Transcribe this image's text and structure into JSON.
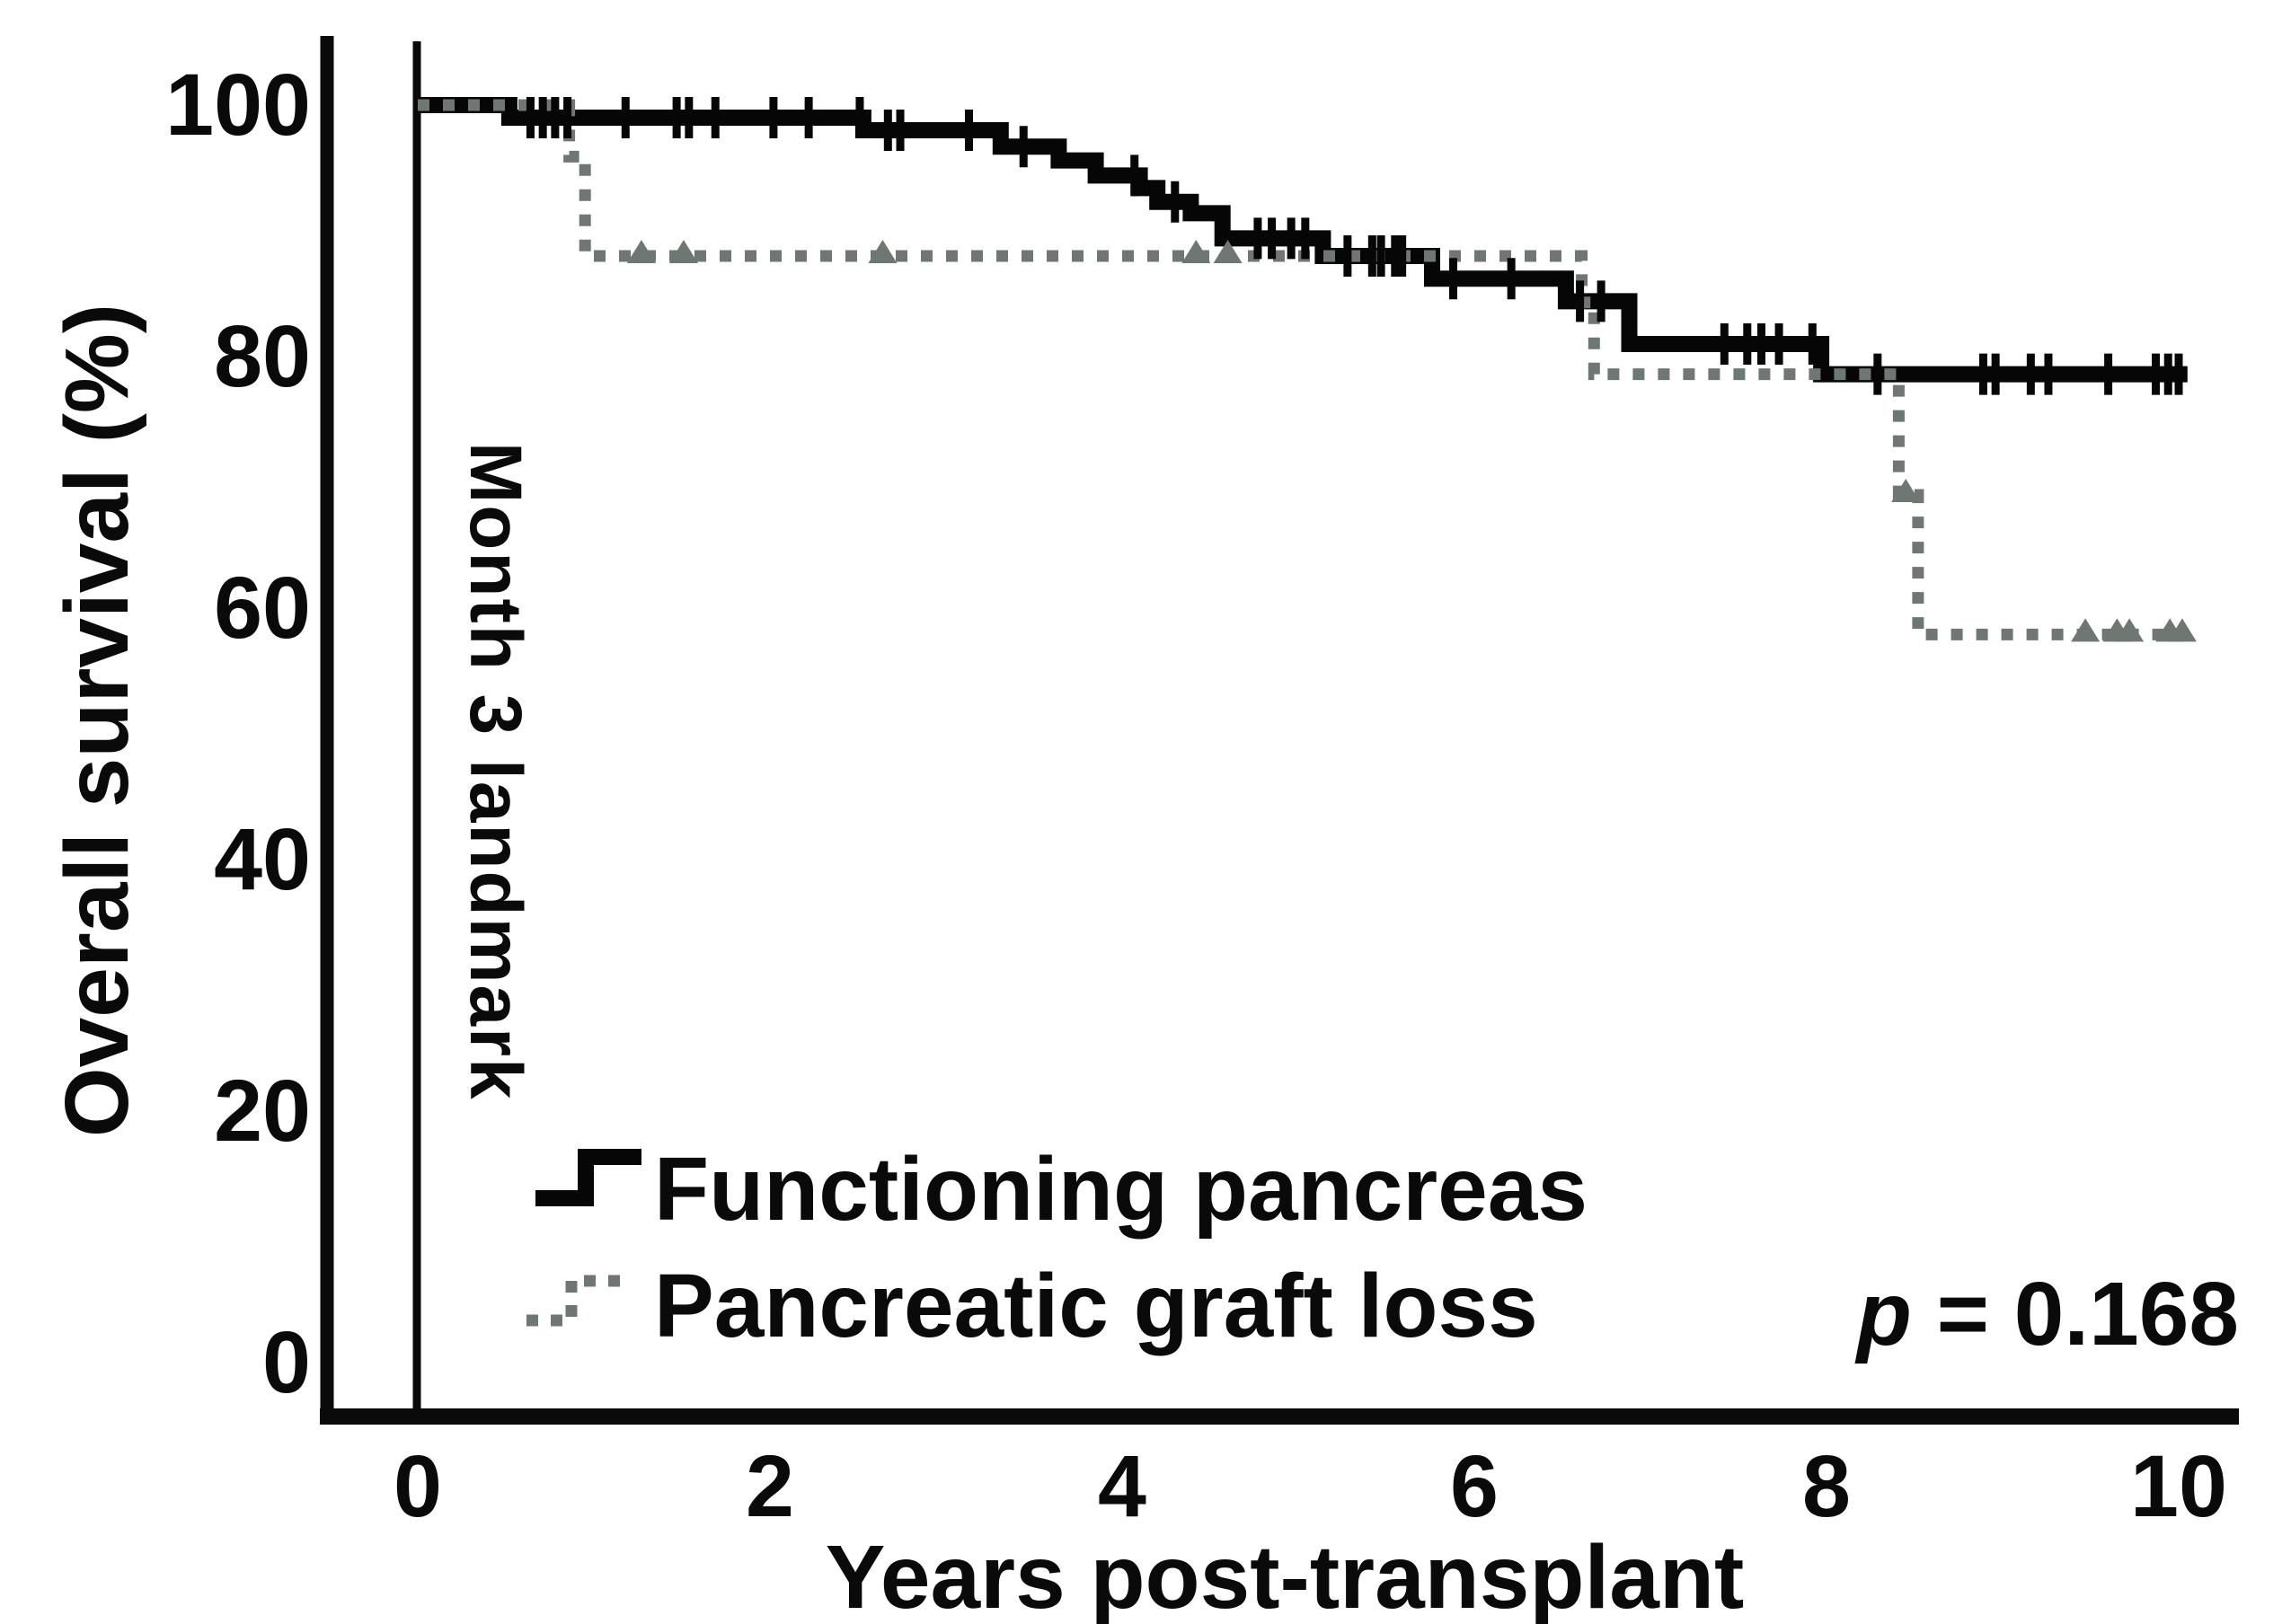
{
  "figure": {
    "background": "#ffffff",
    "p_prefix": "p",
    "p_suffix": " = 0.168",
    "landmark_label": "Month 3 landmark"
  },
  "chart_data": {
    "type": "line",
    "subtype": "kaplan-meier-step",
    "title": "",
    "xlabel": "Years post-transplant",
    "ylabel": "Overall survival (%)",
    "xlim": [
      0,
      10
    ],
    "ylim": [
      0,
      100
    ],
    "x_ticks": [
      0,
      2,
      4,
      6,
      8,
      10
    ],
    "y_ticks": [
      0,
      20,
      40,
      60,
      80,
      100
    ],
    "grid": false,
    "legend_position": "lower-left-inside",
    "annotations": {
      "landmark_line_x": 0,
      "landmark_label": "Month 3 landmark",
      "p_value": "p = 0.168"
    },
    "series": [
      {
        "name": "Functioning pancreas",
        "style": "solid",
        "color": "#060606",
        "censor_style": "tick",
        "points": [
          [
            0,
            100
          ],
          [
            0.52,
            100
          ],
          [
            0.52,
            99
          ],
          [
            2.53,
            99
          ],
          [
            2.53,
            98
          ],
          [
            3.31,
            98
          ],
          [
            3.31,
            96.7
          ],
          [
            3.64,
            96.7
          ],
          [
            3.64,
            95.6
          ],
          [
            3.85,
            95.6
          ],
          [
            3.85,
            94.4
          ],
          [
            4.1,
            94.4
          ],
          [
            4.1,
            93.4
          ],
          [
            4.2,
            93.4
          ],
          [
            4.2,
            92.3
          ],
          [
            4.39,
            92.3
          ],
          [
            4.39,
            91.4
          ],
          [
            4.57,
            91.4
          ],
          [
            4.57,
            89.4
          ],
          [
            5.14,
            89.4
          ],
          [
            5.14,
            88.0
          ],
          [
            5.76,
            88.0
          ],
          [
            5.76,
            86.2
          ],
          [
            6.52,
            86.2
          ],
          [
            6.52,
            84.4
          ],
          [
            6.88,
            84.4
          ],
          [
            6.88,
            81.0
          ],
          [
            7.97,
            81.0
          ],
          [
            7.97,
            78.6
          ],
          [
            10.05,
            78.6
          ]
        ],
        "censor_marks": [
          [
            0.64,
            99
          ],
          [
            0.71,
            99
          ],
          [
            0.78,
            99
          ],
          [
            0.85,
            99
          ],
          [
            1.18,
            99
          ],
          [
            1.47,
            99
          ],
          [
            1.54,
            99
          ],
          [
            1.69,
            99
          ],
          [
            2.02,
            99
          ],
          [
            2.22,
            99
          ],
          [
            2.51,
            99
          ],
          [
            2.67,
            98
          ],
          [
            2.74,
            98
          ],
          [
            3.13,
            98
          ],
          [
            3.44,
            96.7
          ],
          [
            4.07,
            94.4
          ],
          [
            4.3,
            92.3
          ],
          [
            4.77,
            89.4
          ],
          [
            4.85,
            89.4
          ],
          [
            4.96,
            89.4
          ],
          [
            5.04,
            89.4
          ],
          [
            5.28,
            88.0
          ],
          [
            5.42,
            88.0
          ],
          [
            5.47,
            88.0
          ],
          [
            5.55,
            88.0
          ],
          [
            5.59,
            88.0
          ],
          [
            5.88,
            86.2
          ],
          [
            6.21,
            86.2
          ],
          [
            6.6,
            84.4
          ],
          [
            6.72,
            84.4
          ],
          [
            7.42,
            81.0
          ],
          [
            7.55,
            81.0
          ],
          [
            7.63,
            81.0
          ],
          [
            7.73,
            81.0
          ],
          [
            7.92,
            81.0
          ],
          [
            8.29,
            78.6
          ],
          [
            8.89,
            78.6
          ],
          [
            8.96,
            78.6
          ],
          [
            9.16,
            78.6
          ],
          [
            9.26,
            78.6
          ],
          [
            9.6,
            78.6
          ],
          [
            9.87,
            78.6
          ],
          [
            9.94,
            78.6
          ],
          [
            10.0,
            78.6
          ]
        ]
      },
      {
        "name": "Pancreatic graft loss",
        "style": "dotted",
        "color": "#6e7772",
        "censor_style": "triangle",
        "points": [
          [
            0,
            100
          ],
          [
            0.86,
            100
          ],
          [
            0.86,
            95.9
          ],
          [
            0.95,
            95.9
          ],
          [
            0.95,
            88.0
          ],
          [
            6.61,
            88.0
          ],
          [
            6.61,
            84.3
          ],
          [
            6.68,
            84.3
          ],
          [
            6.68,
            78.6
          ],
          [
            8.41,
            78.6
          ],
          [
            8.41,
            69.0
          ],
          [
            8.52,
            69.0
          ],
          [
            8.52,
            57.9
          ],
          [
            10.05,
            57.9
          ]
        ],
        "censor_marks": [
          [
            1.27,
            88.0
          ],
          [
            1.51,
            88.0
          ],
          [
            2.64,
            88.0
          ],
          [
            4.42,
            88.0
          ],
          [
            4.6,
            88.0
          ],
          [
            8.45,
            69.0
          ],
          [
            9.47,
            57.9
          ],
          [
            9.65,
            57.9
          ],
          [
            9.72,
            57.9
          ],
          [
            9.95,
            57.9
          ],
          [
            10.02,
            57.9
          ]
        ]
      }
    ]
  }
}
